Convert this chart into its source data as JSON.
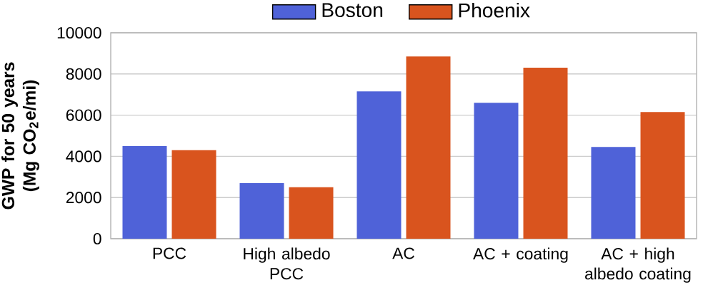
{
  "chart_data": {
    "type": "bar",
    "ylabel": "GWP for 50 years (Mg CO$_{2}$e/mi)",
    "categories": [
      "PCC",
      "High albedo PCC",
      "AC",
      "AC + coating",
      "AC + high albedo coating"
    ],
    "series": [
      {
        "name": "Boston",
        "color": "#4f62d8",
        "values": [
          4500,
          2700,
          7150,
          6600,
          4450
        ]
      },
      {
        "name": "Phoenix",
        "color": "#d9541e",
        "values": [
          4300,
          2500,
          8850,
          8300,
          6150
        ]
      }
    ],
    "ylim": [
      0,
      10000
    ],
    "yticks": [
      0,
      2000,
      4000,
      6000,
      8000,
      10000
    ],
    "grid": "y",
    "legend": "top"
  }
}
